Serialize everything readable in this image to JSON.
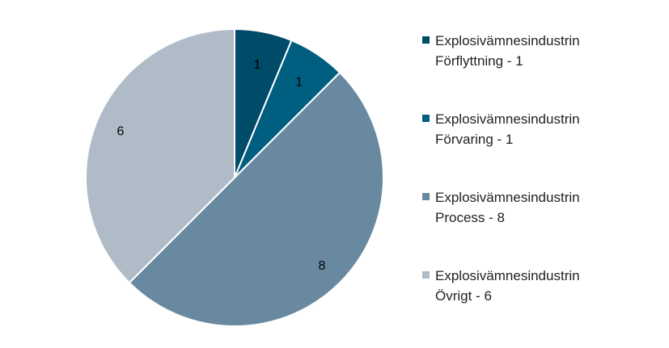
{
  "chart_data": {
    "type": "pie",
    "title": "",
    "categories": [
      "Explosivämnesindustrin Förflyttning",
      "Explosivämnesindustrin Förvaring",
      "Explosivämnesindustrin Process",
      "Explosivämnesindustrin Övrigt"
    ],
    "values": [
      1,
      1,
      8,
      6
    ],
    "data_labels": [
      "1",
      "1",
      "8",
      "6"
    ],
    "colors": [
      "#004b67",
      "#005f80",
      "#6889a0",
      "#afbcc8"
    ],
    "legend": {
      "placement": "right",
      "entries": [
        {
          "line1": "Explosivämnesindustrin",
          "line2": "Förflyttning - 1"
        },
        {
          "line1": "Explosivämnesindustrin",
          "line2": "Förvaring - 1"
        },
        {
          "line1": "Explosivämnesindustrin",
          "line2": "Process - 8"
        },
        {
          "line1": "Explosivämnesindustrin",
          "line2": "Övrigt - 6"
        }
      ]
    }
  }
}
